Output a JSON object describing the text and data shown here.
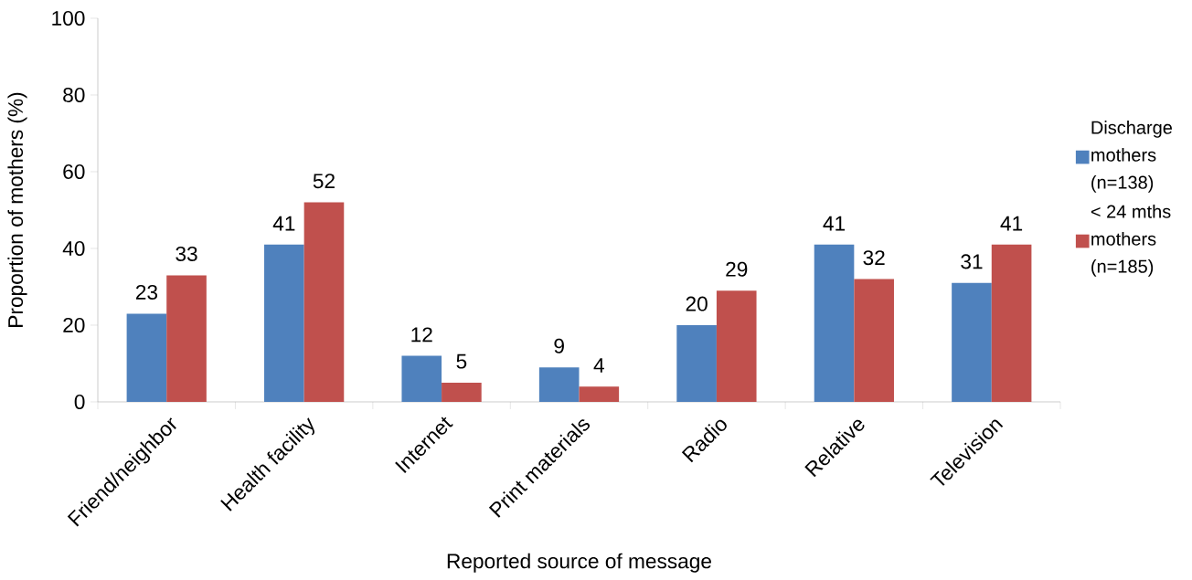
{
  "chart_data": {
    "type": "bar",
    "xlabel": "Reported source of message",
    "ylabel": "Proportion of mothers (%)",
    "categories": [
      "Friend/neighbor",
      "Health facility",
      "Internet",
      "Print materials",
      "Radio",
      "Relative",
      "Television"
    ],
    "series": [
      {
        "name": "Discharge mothers (n=138)",
        "color": "#4f81bd",
        "values": [
          23,
          41,
          12,
          9,
          20,
          41,
          31
        ]
      },
      {
        "name": "< 24 mths mothers (n=185)",
        "color": "#c0504d",
        "values": [
          33,
          52,
          5,
          4,
          29,
          32,
          41
        ]
      }
    ],
    "ylim": [
      0,
      100
    ],
    "yticks": [
      0,
      20,
      40,
      60,
      80,
      100
    ],
    "data_labels": true,
    "legend": "right"
  }
}
